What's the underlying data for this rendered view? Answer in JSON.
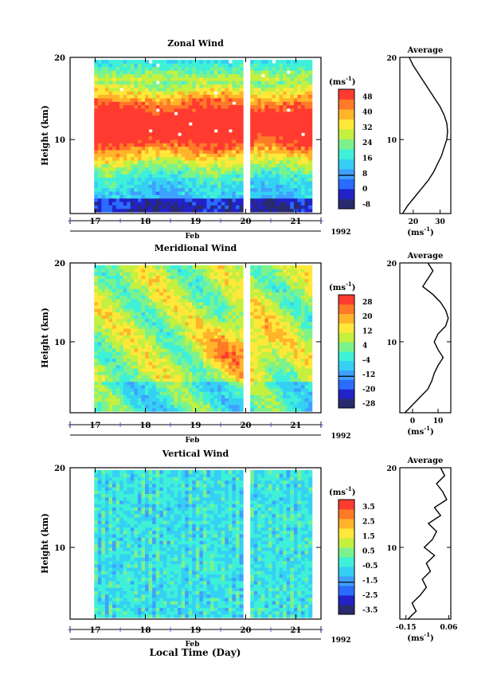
{
  "figure": {
    "xlabel": "Local Time (Day)",
    "month_label": "Feb",
    "year_label": "1992",
    "unit_label": "(ms",
    "unit_sup": "-1",
    "avg_title": "Average"
  },
  "chart_data": [
    {
      "type": "heatmap",
      "title": "Zonal Wind",
      "ylabel": "Height (km)",
      "xlim": [
        16.5,
        21.5
      ],
      "ylim": [
        1,
        20
      ],
      "xticks": [
        "17",
        "18",
        "19",
        "20",
        "21"
      ],
      "yticks": [
        "10",
        "20"
      ],
      "colorbar": {
        "unit": "(ms-1)",
        "ticks": [
          "48",
          "40",
          "32",
          "24",
          "16",
          "8",
          "0",
          "-8"
        ],
        "range": [
          -12,
          52
        ]
      },
      "fields": {
        "kind": "zonal"
      },
      "average": {
        "title": "Average",
        "xlabel": "(ms-1)",
        "xticks": [
          "20",
          "30"
        ],
        "xlim": [
          15,
          34
        ],
        "height": [
          1,
          2,
          3,
          4,
          5,
          6,
          7,
          8,
          9,
          10,
          11,
          12,
          13,
          14,
          15,
          16,
          17,
          18,
          19,
          20
        ],
        "value": [
          16,
          18,
          20.5,
          23,
          25.5,
          27.5,
          29,
          30.5,
          31.5,
          32.5,
          32.8,
          32.5,
          31.5,
          30,
          28,
          26,
          24,
          22,
          20,
          18.5
        ]
      }
    },
    {
      "type": "heatmap",
      "title": "Meridional Wind",
      "ylabel": "Height (km)",
      "xlim": [
        16.5,
        21.5
      ],
      "ylim": [
        1,
        20
      ],
      "xticks": [
        "17",
        "18",
        "19",
        "20",
        "21"
      ],
      "yticks": [
        "10",
        "20"
      ],
      "colorbar": {
        "unit": "(ms-1)",
        "ticks": [
          "28",
          "20",
          "12",
          "4",
          "-4",
          "-12",
          "-20",
          "-28"
        ],
        "range": [
          -32,
          32
        ]
      },
      "fields": {
        "kind": "meridional"
      },
      "average": {
        "title": "Average",
        "xlabel": "(ms-1)",
        "xticks": [
          "0",
          "10"
        ],
        "xlim": [
          -5,
          15
        ],
        "height": [
          1,
          2,
          3,
          4,
          5,
          6,
          7,
          8,
          9,
          10,
          11,
          12,
          13,
          14,
          15,
          16,
          17,
          18,
          19,
          20
        ],
        "value": [
          -3,
          0,
          3,
          6,
          7.5,
          8.5,
          10,
          12,
          10,
          8.5,
          10,
          13,
          14,
          13,
          11,
          8,
          4,
          6,
          8,
          6
        ]
      }
    },
    {
      "type": "heatmap",
      "title": "Vertical Wind",
      "ylabel": "Height (km)",
      "xlim": [
        16.5,
        21.5
      ],
      "ylim": [
        1,
        20
      ],
      "xticks": [
        "17",
        "18",
        "19",
        "20",
        "21"
      ],
      "yticks": [
        "10",
        "20"
      ],
      "colorbar": {
        "unit": "(ms-1)",
        "ticks": [
          "3.5",
          "2.5",
          "1.5",
          "0.5",
          "-0.5",
          "-1.5",
          "-2.5",
          "-3.5"
        ],
        "range": [
          -4,
          4
        ]
      },
      "fields": {
        "kind": "vertical"
      },
      "average": {
        "title": "Average",
        "xlabel": "(ms-1)",
        "xticks": [
          "-0.15",
          "0.06"
        ],
        "xlim": [
          -0.18,
          0.07
        ],
        "height": [
          1,
          2,
          3,
          4,
          5,
          6,
          7,
          8,
          9,
          10,
          11,
          12,
          13,
          14,
          15,
          16,
          17,
          18,
          19,
          20
        ],
        "value": [
          -0.14,
          -0.1,
          -0.12,
          -0.08,
          -0.05,
          -0.07,
          -0.03,
          -0.05,
          -0.01,
          -0.06,
          -0.02,
          0.0,
          -0.04,
          0.02,
          -0.01,
          0.05,
          0.03,
          0.0,
          0.04,
          0.02
        ]
      }
    }
  ]
}
